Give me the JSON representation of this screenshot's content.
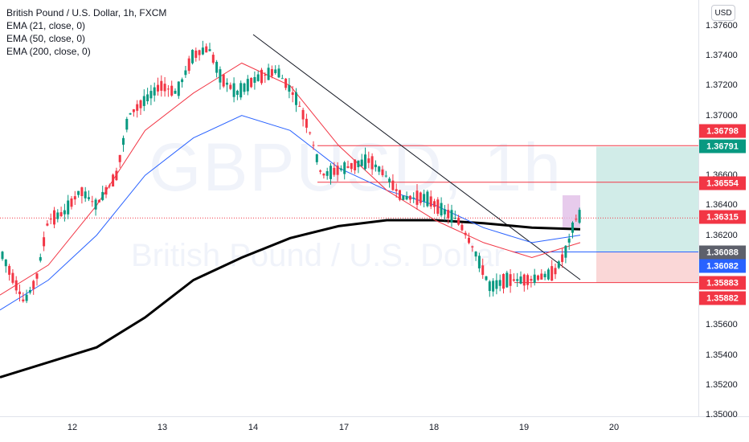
{
  "legend": {
    "symbol": "British Pound / U.S. Dollar, 1h, FXCM",
    "ema1": "EMA (21, close, 0)",
    "ema2": "EMA (50, close, 0)",
    "ema3": "EMA (200, close, 0)"
  },
  "currency_button": "USD",
  "watermark": {
    "ticker": "GBPUSD, 1h",
    "name": "British Pound / U.S. Dollar"
  },
  "price_axis": {
    "ticks": [
      "1.37600",
      "1.37400",
      "1.37200",
      "1.37000",
      "1.36600",
      "1.36400",
      "1.36200",
      "1.35600",
      "1.35400",
      "1.35200",
      "1.35000"
    ]
  },
  "time_axis": {
    "ticks": [
      "12",
      "13",
      "14",
      "17",
      "18",
      "19",
      "20"
    ]
  },
  "price_tags": [
    {
      "label": "1.36798",
      "color": "#f23645"
    },
    {
      "label": "1.36791",
      "color": "#089981"
    },
    {
      "label": "1.36554",
      "color": "#f23645"
    },
    {
      "label": "1.36315",
      "color": "#f23645"
    },
    {
      "label": "1.36088",
      "color": "#5d606b"
    },
    {
      "label": "1.36082",
      "color": "#2962ff"
    },
    {
      "label": "1.35883",
      "color": "#f23645"
    },
    {
      "label": "1.35882",
      "color": "#f23645"
    }
  ],
  "colors": {
    "up": "#089981",
    "down": "#f23645",
    "ema21": "#f23645",
    "ema50": "#2962ff",
    "ema200": "#000000",
    "target_zone": "#b2e0d8",
    "stop_zone": "#f8c6c6"
  },
  "chart_data": {
    "type": "candlestick",
    "symbol": "GBPUSD",
    "timeframe": "1h",
    "ylim": [
      1.35,
      1.3762
    ],
    "levels": {
      "resistance_upper": 1.36798,
      "resistance_mid": 1.36554,
      "current_price": 1.36315,
      "entry": 1.36088,
      "stop": 1.35883
    },
    "trade": {
      "entry": 1.36088,
      "target": 1.36791,
      "stop": 1.35882
    },
    "ema21_approx": [
      1.358,
      1.36,
      1.364,
      1.369,
      1.3715,
      1.3735,
      1.372,
      1.368,
      1.365,
      1.363,
      1.3615,
      1.3605,
      1.3615
    ],
    "ema50_approx": [
      1.357,
      1.359,
      1.362,
      1.366,
      1.3685,
      1.37,
      1.369,
      1.3665,
      1.365,
      1.364,
      1.3625,
      1.3615,
      1.362
    ],
    "ema200_approx": [
      1.3525,
      1.3535,
      1.3545,
      1.3565,
      1.359,
      1.3605,
      1.3618,
      1.3626,
      1.363,
      1.363,
      1.3628,
      1.3625,
      1.3624
    ]
  }
}
